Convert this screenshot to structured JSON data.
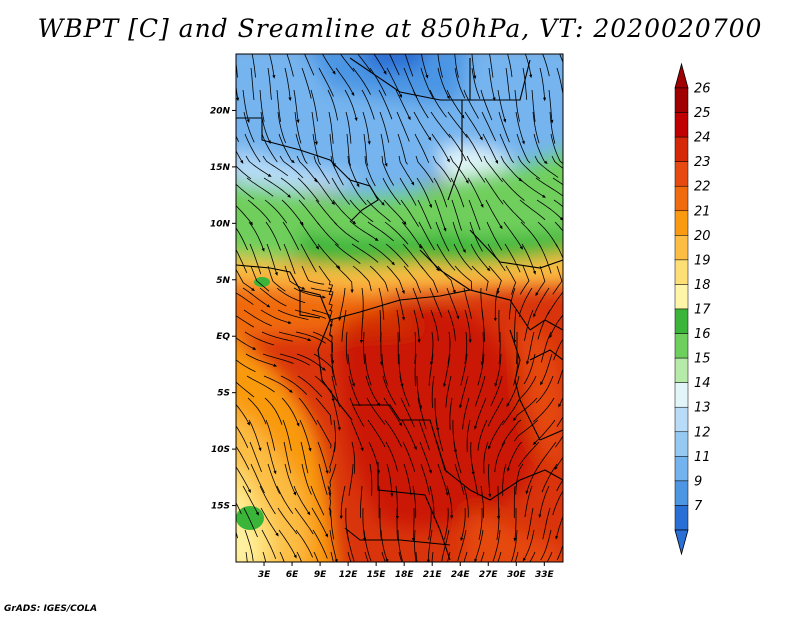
{
  "title": "WBPT [C] and Sreamline at 850hPa, VT: 2020020700",
  "credit": "GrADS: IGES/COLA",
  "map": {
    "lon_range": [
      0,
      35
    ],
    "lat_range": [
      -20,
      25
    ],
    "x_ticks": [
      {
        "value": 3,
        "label": "3E"
      },
      {
        "value": 6,
        "label": "6E"
      },
      {
        "value": 9,
        "label": "9E"
      },
      {
        "value": 12,
        "label": "12E"
      },
      {
        "value": 15,
        "label": "15E"
      },
      {
        "value": 18,
        "label": "18E"
      },
      {
        "value": 21,
        "label": "21E"
      },
      {
        "value": 24,
        "label": "24E"
      },
      {
        "value": 27,
        "label": "27E"
      },
      {
        "value": 30,
        "label": "30E"
      },
      {
        "value": 33,
        "label": "33E"
      }
    ],
    "y_ticks": [
      {
        "value": 20,
        "label": "20N"
      },
      {
        "value": 15,
        "label": "15N"
      },
      {
        "value": 10,
        "label": "10N"
      },
      {
        "value": 5,
        "label": "5N"
      },
      {
        "value": 0,
        "label": "EQ"
      },
      {
        "value": -5,
        "label": "5S"
      },
      {
        "value": -10,
        "label": "10S"
      },
      {
        "value": -15,
        "label": "15S"
      }
    ]
  },
  "colorbar": {
    "levels": [
      {
        "label": "26",
        "color": "#a00000"
      },
      {
        "label": "25",
        "color": "#c00000"
      },
      {
        "label": "24",
        "color": "#d42808"
      },
      {
        "label": "23",
        "color": "#e64a10"
      },
      {
        "label": "22",
        "color": "#f06a0e"
      },
      {
        "label": "21",
        "color": "#f99a10"
      },
      {
        "label": "20",
        "color": "#fcbd42"
      },
      {
        "label": "19",
        "color": "#fedf76"
      },
      {
        "label": "18",
        "color": "#fff5a8"
      },
      {
        "label": "17",
        "color": "#3ab53a"
      },
      {
        "label": "16",
        "color": "#6fcf5c"
      },
      {
        "label": "15",
        "color": "#b5eaa8"
      },
      {
        "label": "14",
        "color": "#e2f6f9"
      },
      {
        "label": "13",
        "color": "#b8dcf7"
      },
      {
        "label": "12",
        "color": "#96c9f2"
      },
      {
        "label": "11",
        "color": "#74b4ee"
      },
      {
        "label": "9",
        "color": "#4c96e4"
      },
      {
        "label": "7",
        "color": "#2a6fd6"
      }
    ],
    "top_arrow_color": "#a00000",
    "bottom_arrow_color": "#2a6fd6"
  }
}
